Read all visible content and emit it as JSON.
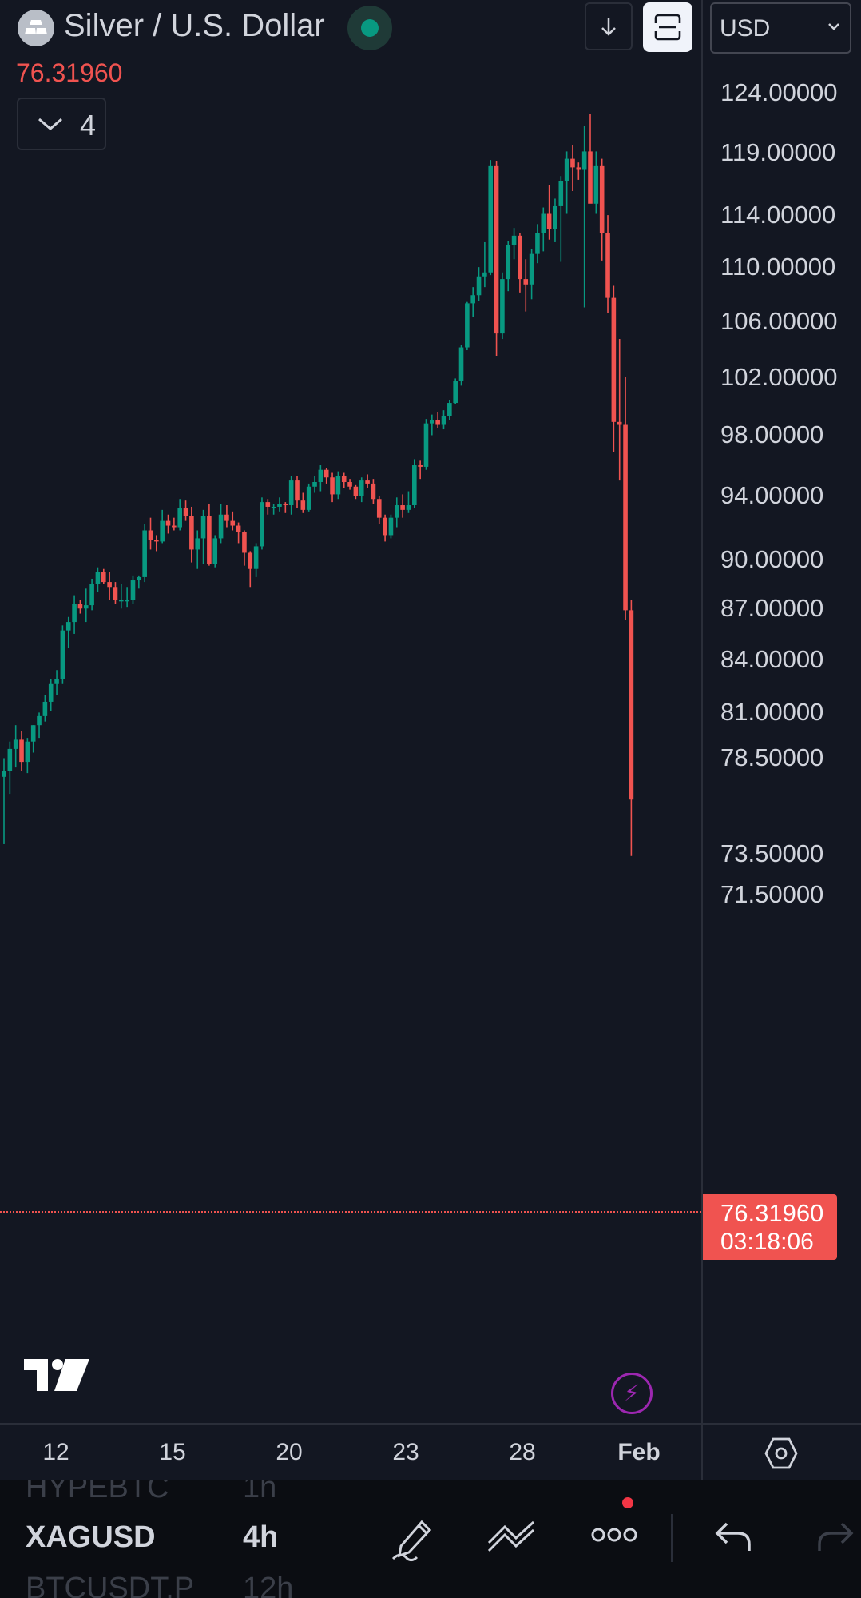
{
  "header": {
    "symbol_name": "Silver / U.S. Dollar",
    "last_price": "76.31960",
    "currency": "USD",
    "indicator_count": "4",
    "market_status": "open",
    "colors": {
      "up": "#089981",
      "down": "#f05350",
      "background": "#131722",
      "text": "#d1d4dc"
    }
  },
  "price_scale": {
    "labels": [
      "124.00000",
      "119.00000",
      "114.00000",
      "110.00000",
      "106.00000",
      "102.00000",
      "98.00000",
      "94.00000",
      "90.00000",
      "87.00000",
      "84.00000",
      "81.00000",
      "78.50000",
      "73.50000",
      "71.50000"
    ],
    "current_price": "76.31960",
    "countdown": "03:18:06"
  },
  "time_axis": {
    "labels": [
      "12",
      "15",
      "20",
      "23",
      "28",
      "Feb"
    ]
  },
  "chart_data": {
    "type": "candlestick",
    "symbol": "XAGUSD",
    "interval": "4h",
    "ylim": [
      70.5,
      125.5
    ],
    "last_price": 76.3196,
    "x_ticks": [
      "12",
      "15",
      "20",
      "23",
      "28",
      "Feb"
    ],
    "candles": [
      [
        77.5,
        78.5,
        74.0,
        77.8
      ],
      [
        77.8,
        79.4,
        76.6,
        79.0
      ],
      [
        79.0,
        80.3,
        78.0,
        79.5
      ],
      [
        79.5,
        80.0,
        77.8,
        78.3
      ],
      [
        78.3,
        79.6,
        77.7,
        79.4
      ],
      [
        79.4,
        80.3,
        78.8,
        80.3
      ],
      [
        80.3,
        81.0,
        79.6,
        80.8
      ],
      [
        80.8,
        82.0,
        80.5,
        81.6
      ],
      [
        81.6,
        82.9,
        81.1,
        82.6
      ],
      [
        82.6,
        83.4,
        82.0,
        82.9
      ],
      [
        82.9,
        86.0,
        82.6,
        85.7
      ],
      [
        85.7,
        86.5,
        84.7,
        86.2
      ],
      [
        86.2,
        87.8,
        85.5,
        87.3
      ],
      [
        87.3,
        87.5,
        86.7,
        87.0
      ],
      [
        87.0,
        88.2,
        86.2,
        87.2
      ],
      [
        87.2,
        88.8,
        86.9,
        88.5
      ],
      [
        88.5,
        89.5,
        88.0,
        89.2
      ],
      [
        89.2,
        89.4,
        88.5,
        88.6
      ],
      [
        88.6,
        89.2,
        87.5,
        88.3
      ],
      [
        88.3,
        88.6,
        87.3,
        87.5
      ],
      [
        87.5,
        88.5,
        87.0,
        87.5
      ],
      [
        87.5,
        88.3,
        87.1,
        87.5
      ],
      [
        87.5,
        89.0,
        87.3,
        88.7
      ],
      [
        88.7,
        89.0,
        88.2,
        88.9
      ],
      [
        88.9,
        92.2,
        88.6,
        91.8
      ],
      [
        91.8,
        92.6,
        90.6,
        91.2
      ],
      [
        91.2,
        91.5,
        90.5,
        91.1
      ],
      [
        91.1,
        93.1,
        91.0,
        92.4
      ],
      [
        92.4,
        92.8,
        91.6,
        92.1
      ],
      [
        92.1,
        92.6,
        91.8,
        92.0
      ],
      [
        92.0,
        93.8,
        91.8,
        93.2
      ],
      [
        93.2,
        93.7,
        92.4,
        92.7
      ],
      [
        92.7,
        93.3,
        89.8,
        90.6
      ],
      [
        90.6,
        91.8,
        89.4,
        91.3
      ],
      [
        91.3,
        93.1,
        89.7,
        92.7
      ],
      [
        92.7,
        93.5,
        89.6,
        89.7
      ],
      [
        89.7,
        91.5,
        89.5,
        91.3
      ],
      [
        91.3,
        93.5,
        91.0,
        92.8
      ],
      [
        92.8,
        93.4,
        92.0,
        92.4
      ],
      [
        92.4,
        93.0,
        91.8,
        92.1
      ],
      [
        92.1,
        92.3,
        91.0,
        91.7
      ],
      [
        91.7,
        91.8,
        89.6,
        90.4
      ],
      [
        90.4,
        90.5,
        88.3,
        89.4
      ],
      [
        89.4,
        91.0,
        88.9,
        90.8
      ],
      [
        90.8,
        93.9,
        90.6,
        93.6
      ],
      [
        93.6,
        93.8,
        92.8,
        93.3
      ],
      [
        93.3,
        93.5,
        92.8,
        93.3
      ],
      [
        93.3,
        93.9,
        93.0,
        93.5
      ],
      [
        93.5,
        93.6,
        92.9,
        93.4
      ],
      [
        93.4,
        95.3,
        92.8,
        95.0
      ],
      [
        95.0,
        95.3,
        93.2,
        93.7
      ],
      [
        93.7,
        94.2,
        92.9,
        93.1
      ],
      [
        93.1,
        94.8,
        93.0,
        94.6
      ],
      [
        94.6,
        95.3,
        94.2,
        94.9
      ],
      [
        94.9,
        96.0,
        94.3,
        95.7
      ],
      [
        95.7,
        95.8,
        94.8,
        95.2
      ],
      [
        95.2,
        95.5,
        93.6,
        94.1
      ],
      [
        94.1,
        95.6,
        93.8,
        95.3
      ],
      [
        95.3,
        95.5,
        94.5,
        94.9
      ],
      [
        94.9,
        95.1,
        94.4,
        94.6
      ],
      [
        94.6,
        94.7,
        93.8,
        94.0
      ],
      [
        94.0,
        95.2,
        93.6,
        95.0
      ],
      [
        95.0,
        95.4,
        94.5,
        94.8
      ],
      [
        94.8,
        95.1,
        93.5,
        93.8
      ],
      [
        93.8,
        94.0,
        92.2,
        92.6
      ],
      [
        92.6,
        92.8,
        91.1,
        91.5
      ],
      [
        91.5,
        92.8,
        91.3,
        92.6
      ],
      [
        92.6,
        93.9,
        92.0,
        93.4
      ],
      [
        93.4,
        94.1,
        92.6,
        93.1
      ],
      [
        93.1,
        94.3,
        92.9,
        93.4
      ],
      [
        93.4,
        96.4,
        93.2,
        96.0
      ],
      [
        96.0,
        96.3,
        95.1,
        95.9
      ],
      [
        95.9,
        99.1,
        95.7,
        98.8
      ],
      [
        98.8,
        99.4,
        98.0,
        99.0
      ],
      [
        99.0,
        99.6,
        98.5,
        98.7
      ],
      [
        98.7,
        99.7,
        98.4,
        99.3
      ],
      [
        99.3,
        100.4,
        99.0,
        100.2
      ],
      [
        100.2,
        101.9,
        100.1,
        101.7
      ],
      [
        101.7,
        104.3,
        101.4,
        104.1
      ],
      [
        104.1,
        107.4,
        103.9,
        107.3
      ],
      [
        107.3,
        108.5,
        106.3,
        107.9
      ],
      [
        107.9,
        110.0,
        107.5,
        109.3
      ],
      [
        109.3,
        111.9,
        108.5,
        109.6
      ],
      [
        109.6,
        118.4,
        109.4,
        117.9
      ],
      [
        117.9,
        118.3,
        103.5,
        105.1
      ],
      [
        105.1,
        109.6,
        104.7,
        109.1
      ],
      [
        109.1,
        112.0,
        108.2,
        111.7
      ],
      [
        111.7,
        113.0,
        110.6,
        112.4
      ],
      [
        112.4,
        112.6,
        108.1,
        109.1
      ],
      [
        109.1,
        110.6,
        106.7,
        108.7
      ],
      [
        108.7,
        111.4,
        107.6,
        111.0
      ],
      [
        111.0,
        113.3,
        110.3,
        112.6
      ],
      [
        112.6,
        114.6,
        111.2,
        114.1
      ],
      [
        114.1,
        116.4,
        112.1,
        112.9
      ],
      [
        112.9,
        115.3,
        111.9,
        114.7
      ],
      [
        114.7,
        117.1,
        110.4,
        116.7
      ],
      [
        116.7,
        119.1,
        114.1,
        118.5
      ],
      [
        118.5,
        119.6,
        115.9,
        117.8
      ],
      [
        117.8,
        118.2,
        116.8,
        117.6
      ],
      [
        117.6,
        121.2,
        107.0,
        119.1
      ],
      [
        119.1,
        122.2,
        115.4,
        114.9
      ],
      [
        114.9,
        119.1,
        114.1,
        117.9
      ],
      [
        117.9,
        118.5,
        110.5,
        112.6
      ],
      [
        112.6,
        114.0,
        106.6,
        107.7
      ],
      [
        107.7,
        108.6,
        96.9,
        98.9
      ],
      [
        98.9,
        104.7,
        95.0,
        98.7
      ],
      [
        98.7,
        102.0,
        86.3,
        86.9
      ],
      [
        86.9,
        87.5,
        73.4,
        76.3
      ]
    ]
  },
  "watchlist": {
    "rows": [
      {
        "symbol": "HYPEBTC",
        "interval": "1h"
      },
      {
        "symbol": "XAGUSD",
        "interval": "4h"
      },
      {
        "symbol": "BTCUSDT.P",
        "interval": "12h"
      }
    ]
  },
  "toolbar": {
    "icons": [
      "draw-icon",
      "chart-trend-icon",
      "more-icon",
      "undo-icon",
      "redo-icon"
    ]
  },
  "branding": {
    "logo": "tradingview-logo"
  }
}
